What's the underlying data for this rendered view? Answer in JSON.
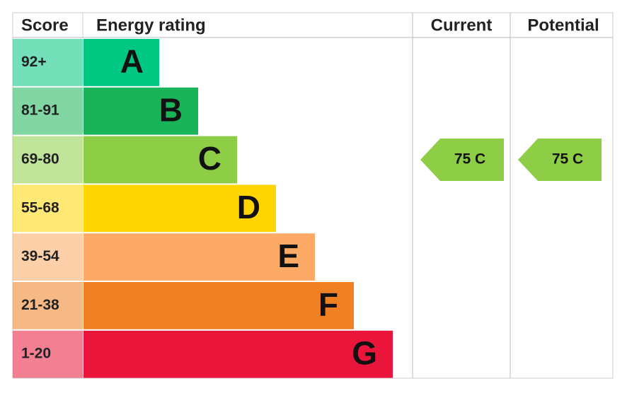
{
  "header": {
    "score": "Score",
    "rating": "Energy rating",
    "current": "Current",
    "potential": "Potential"
  },
  "bands": [
    {
      "score": "92+",
      "letter": "A",
      "color": "#00c781"
    },
    {
      "score": "81-91",
      "letter": "B",
      "color": "#19b459"
    },
    {
      "score": "69-80",
      "letter": "C",
      "color": "#8dce46"
    },
    {
      "score": "55-68",
      "letter": "D",
      "color": "#ffd500"
    },
    {
      "score": "39-54",
      "letter": "E",
      "color": "#fcaa65"
    },
    {
      "score": "21-38",
      "letter": "F",
      "color": "#ef8023"
    },
    {
      "score": "1-20",
      "letter": "G",
      "color": "#e9153b"
    }
  ],
  "current": "75 C",
  "potential": "75 C"
}
